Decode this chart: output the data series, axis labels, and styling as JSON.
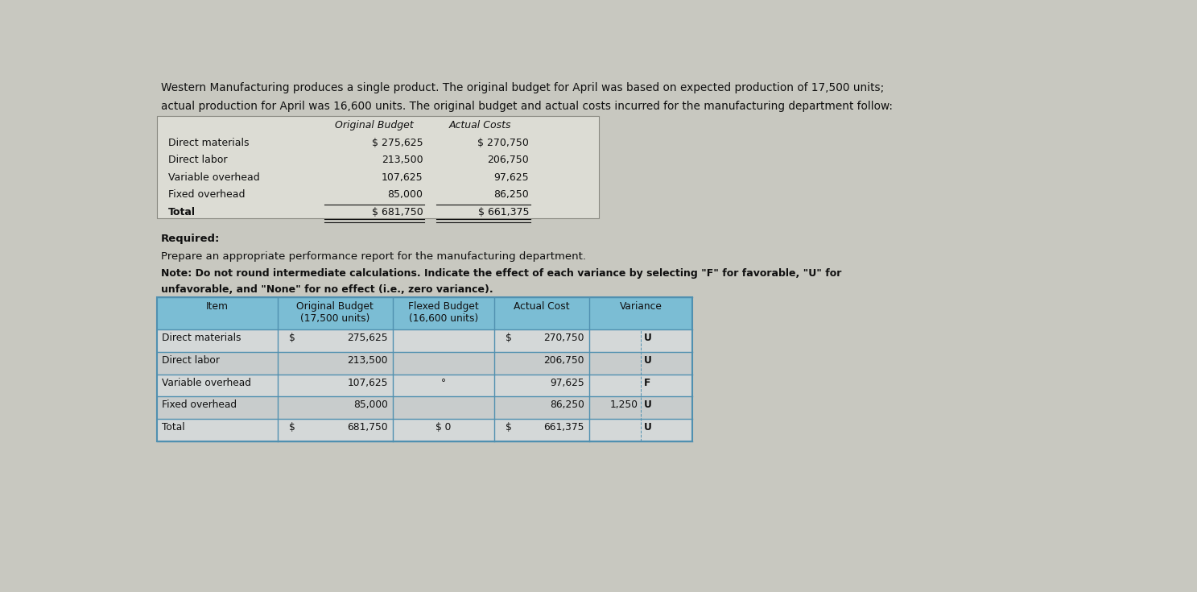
{
  "intro_text_line1": "Western Manufacturing produces a single product. The original budget for April was based on expected production of 17,500 units;",
  "intro_text_line2": "actual production for April was 16,600 units. The original budget and actual costs incurred for the manufacturing department follow:",
  "top_table_header_col1": "Original Budget",
  "top_table_header_col2": "Actual Costs",
  "top_rows": [
    [
      "Direct materials",
      "$ 275,625",
      "$ 270,750"
    ],
    [
      "Direct labor",
      "213,500",
      "206,750"
    ],
    [
      "Variable overhead",
      "107,625",
      "97,625"
    ],
    [
      "Fixed overhead",
      "85,000",
      "86,250"
    ],
    [
      "Total",
      "$ 681,750",
      "$ 661,375"
    ]
  ],
  "required_line1": "Required:",
  "required_line2": "Prepare an appropriate performance report for the manufacturing department.",
  "required_line3": "Note: Do not round intermediate calculations. Indicate the effect of each variance by selecting \"F\" for favorable, \"U\" for",
  "required_line4": "unfavorable, and \"None\" for no effect (i.e., zero variance).",
  "btbl_headers": [
    "Item",
    "Original Budget\n(17,500 units)",
    "Flexed Budget\n(16,600 units)",
    "Actual Cost",
    "Variance"
  ],
  "btbl_rows": [
    [
      "Direct materials",
      "$",
      "275,625",
      "",
      "$",
      "270,750",
      "",
      "U"
    ],
    [
      "Direct labor",
      "",
      "213,500",
      "",
      "",
      "206,750",
      "",
      "U"
    ],
    [
      "Variable overhead",
      "",
      "107,625",
      "°",
      "",
      "97,625",
      "",
      "F"
    ],
    [
      "Fixed overhead",
      "",
      "85,000",
      "",
      "",
      "86,250",
      "1,250",
      "U"
    ],
    [
      "Total",
      "$",
      "681,750",
      "$ 0",
      "$",
      "661,375",
      "",
      "U"
    ]
  ],
  "bg_color": "#c8c8c0",
  "top_tbl_bg": "#dcdcd4",
  "top_tbl_border": "#888880",
  "hdr_bg": "#7bbdd4",
  "row_bg_even": "#d4d8d8",
  "row_bg_odd": "#c8cccc",
  "tbl_border": "#5090b0",
  "text_dark": "#101010",
  "font_size_intro": 9.8,
  "font_size_tbl": 9.0,
  "font_size_req": 9.5,
  "font_size_btbl": 8.8
}
